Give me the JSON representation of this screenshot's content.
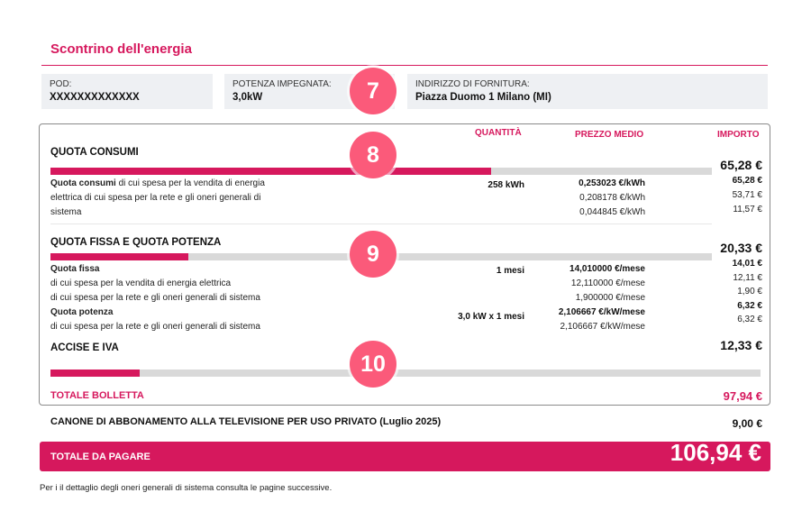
{
  "header": {
    "title": "Scontrino dell'energia"
  },
  "info": {
    "pod_label": "POD:",
    "pod_value": "XXXXXXXXXXXXX",
    "potenza_label": "POTENZA IMPEGNATA:",
    "potenza_value": "3,0kW",
    "indirizzo_label": "INDIRIZZO DI FORNITURA:",
    "indirizzo_value": "Piazza Duomo 1 Milano (MI)"
  },
  "badges": [
    "7",
    "8",
    "9",
    "10"
  ],
  "columns": {
    "quantita": "QUANTITÀ",
    "prezzo": "PREZZO MEDIO",
    "importo": "IMPORTO"
  },
  "consumi": {
    "title": "QUOTA CONSUMI",
    "total": "65,28 €",
    "bar_fraction": 0.666,
    "desc_bold": "Quota consumi",
    "desc_1": " di cui spesa per la vendita di energia",
    "desc_2": "elettrica di cui spesa per la rete e gli oneri generali di",
    "desc_3": "sistema",
    "quantita": "258 kWh",
    "prezzi": [
      "0,253023 €/kWh",
      "0,208178 €/kWh",
      "0,044845 €/kWh"
    ],
    "importi": [
      "65,28 €",
      "53,71 €",
      "11,57 €"
    ]
  },
  "fissa": {
    "title": "QUOTA FISSA E QUOTA POTENZA",
    "total": "20,33 €",
    "bar_fraction": 0.208,
    "quota_fissa_label": "Quota fissa",
    "fissa_line_1": "di cui spesa per la vendita di energia elettrica",
    "fissa_line_2": "di cui spesa per la rete e gli oneri generali di sistema",
    "quota_potenza_label": "Quota potenza",
    "potenza_line_1": "di cui spesa per la rete e gli oneri generali di sistema",
    "fissa_quantita": "1 mesi",
    "potenza_quantita": "3,0 kW x 1 mesi",
    "prezzi": [
      "14,010000 €/mese",
      "12,110000 €/mese",
      "1,900000 €/mese",
      "2,106667 €/kW/mese",
      "2,106667 €/kW/mese"
    ],
    "importi": [
      "14,01 €",
      "12,11 €",
      "1,90 €",
      "6,32 €",
      "6,32 €"
    ]
  },
  "accise": {
    "title": "ACCISE E IVA",
    "total": "12,33 €",
    "bar_fraction": 0.126
  },
  "totale_bolletta": {
    "label": "TOTALE BOLLETTA",
    "value": "97,94 €"
  },
  "canone": {
    "label": "CANONE DI ABBONAMENTO ALLA TELEVISIONE PER USO PRIVATO (Luglio 2025)",
    "value": "9,00 €"
  },
  "totale_pagare": {
    "label": "TOTALE DA PAGARE",
    "value": "106,94 €"
  },
  "footer": {
    "note": "Per i il dettaglio degli oneri generali di sistema consulta le pagine successive."
  },
  "colors": {
    "accent": "#d6185d",
    "badge": "#fb5a7a",
    "bar_bg": "#d9d9d9",
    "info_bg": "#eef0f3"
  }
}
